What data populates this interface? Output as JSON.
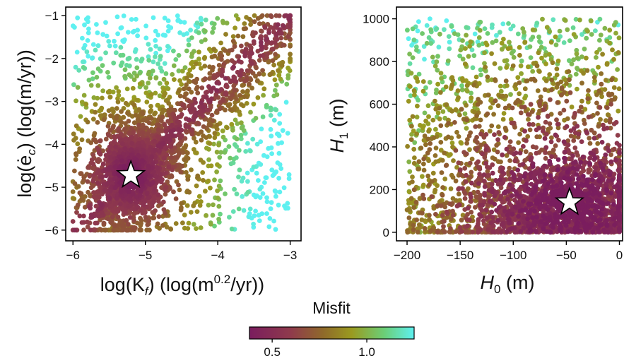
{
  "chart_data": [
    {
      "type": "scatter",
      "panel": "left",
      "xlabel_text": "log(K",
      "xlabel_sub": "f",
      "xlabel_units_pre": ") (log(m",
      "xlabel_sup": "0.2",
      "xlabel_units_post": "/yr))",
      "ylabel_text": "log(ė",
      "ylabel_sub": "c",
      "ylabel_units": ") (log(m/yr))",
      "xlim": [
        -6.1,
        -2.85
      ],
      "ylim": [
        -6.25,
        -0.8
      ],
      "xticks": [
        -6,
        -5,
        -4,
        -3
      ],
      "xtick_labels": [
        "−6",
        "−5",
        "−4",
        "−3"
      ],
      "yticks": [
        -6,
        -5,
        -4,
        -3,
        -2,
        -1
      ],
      "ytick_labels": [
        "−6",
        "−5",
        "−4",
        "−3",
        "−2",
        "−1"
      ],
      "best_fit": {
        "x": -5.2,
        "y": -4.72,
        "marker": "star"
      },
      "point_count": 3000,
      "misfit_range": [
        0.38,
        1.25
      ]
    },
    {
      "type": "scatter",
      "panel": "right",
      "xlabel_text": "H",
      "xlabel_sub": "0",
      "xlabel_units": " (m)",
      "ylabel_text": "H",
      "ylabel_sub": "1",
      "ylabel_units": " (m)",
      "xlim": [
        -210,
        3
      ],
      "ylim": [
        -40,
        1055
      ],
      "xticks": [
        -200,
        -150,
        -100,
        -50,
        0
      ],
      "xtick_labels": [
        "−200",
        "−150",
        "−100",
        "−50",
        "0"
      ],
      "yticks": [
        0,
        200,
        400,
        600,
        800,
        1000
      ],
      "ytick_labels": [
        "0",
        "200",
        "400",
        "600",
        "800",
        "1000"
      ],
      "best_fit": {
        "x": -47,
        "y": 140,
        "marker": "star"
      },
      "point_count": 3000,
      "misfit_range": [
        0.38,
        1.25
      ]
    }
  ],
  "colorbar": {
    "label": "Misfit",
    "range": [
      0.38,
      1.25
    ],
    "ticks": [
      0.5,
      1.0
    ],
    "tick_labels": [
      "0.5",
      "1.0"
    ],
    "colors": [
      "#7a1d5e",
      "#8f3a4c",
      "#8f6a2a",
      "#9a9a20",
      "#6bcf78",
      "#5ef0f0"
    ]
  }
}
